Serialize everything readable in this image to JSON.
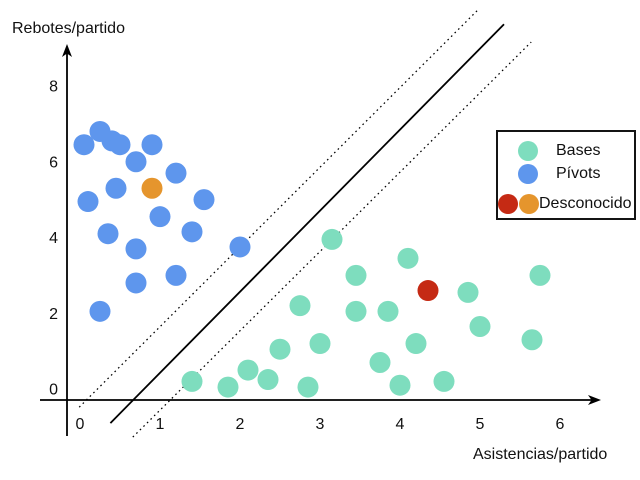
{
  "chart_data": {
    "type": "scatter",
    "title": "",
    "xlabel": "Asistencias/partido",
    "ylabel": "Rebotes/partido",
    "xlim": [
      -0.5,
      6.5
    ],
    "ylim": [
      -0.4,
      9.4
    ],
    "x_ticks": [
      0,
      1,
      2,
      3,
      4,
      5,
      6
    ],
    "y_ticks": [
      0,
      2,
      4,
      6,
      8
    ],
    "grid": false,
    "legend_position": "upper right",
    "series": [
      {
        "name": "Bases",
        "color": "#7EDDBE",
        "points": [
          [
            3.15,
            3.95
          ],
          [
            4.1,
            3.45
          ],
          [
            3.45,
            3.0
          ],
          [
            5.75,
            3.0
          ],
          [
            4.85,
            2.55
          ],
          [
            2.75,
            2.2
          ],
          [
            3.45,
            2.05
          ],
          [
            3.85,
            2.05
          ],
          [
            5.0,
            1.65
          ],
          [
            5.65,
            1.3
          ],
          [
            3.0,
            1.2
          ],
          [
            4.2,
            1.2
          ],
          [
            2.5,
            1.05
          ],
          [
            3.75,
            0.7
          ],
          [
            2.1,
            0.5
          ],
          [
            2.35,
            0.25
          ],
          [
            4.55,
            0.2
          ],
          [
            1.4,
            0.2
          ],
          [
            4.0,
            0.1
          ],
          [
            1.85,
            0.05
          ],
          [
            2.85,
            0.05
          ]
        ]
      },
      {
        "name": "Pívots",
        "color": "#5E96ED",
        "points": [
          [
            0.25,
            6.8
          ],
          [
            0.4,
            6.55
          ],
          [
            0.05,
            6.45
          ],
          [
            0.5,
            6.45
          ],
          [
            0.9,
            6.45
          ],
          [
            0.7,
            6.0
          ],
          [
            1.2,
            5.7
          ],
          [
            0.45,
            5.3
          ],
          [
            1.55,
            5.0
          ],
          [
            0.1,
            4.95
          ],
          [
            1.0,
            4.55
          ],
          [
            1.4,
            4.15
          ],
          [
            0.35,
            4.1
          ],
          [
            2.0,
            3.75
          ],
          [
            0.7,
            3.7
          ],
          [
            1.2,
            3.0
          ],
          [
            0.7,
            2.8
          ],
          [
            0.25,
            2.05
          ]
        ]
      },
      {
        "name": "Desconocido",
        "color": "#C52A14",
        "points": [
          [
            4.35,
            2.6
          ]
        ]
      },
      {
        "name": "Desconocido",
        "color": "#E5952D",
        "points": [
          [
            0.9,
            5.3
          ]
        ]
      }
    ],
    "boundary_lines": [
      {
        "style": "dotted",
        "x1": -0.01,
        "y1": -0.48,
        "x2": 4.97,
        "y2": 10.0
      },
      {
        "style": "solid",
        "x1": 0.38,
        "y1": -0.9,
        "x2": 5.3,
        "y2": 9.63
      },
      {
        "style": "dotted",
        "x1": 0.66,
        "y1": -1.27,
        "x2": 5.64,
        "y2": 9.16
      }
    ]
  },
  "legend": {
    "entries": [
      {
        "label": "Bases",
        "colors": [
          "#7EDDBE"
        ]
      },
      {
        "label": "Pívots",
        "colors": [
          "#5E96ED"
        ]
      },
      {
        "label": "Desconocido",
        "colors": [
          "#C52A14",
          "#E5952D"
        ]
      }
    ]
  }
}
